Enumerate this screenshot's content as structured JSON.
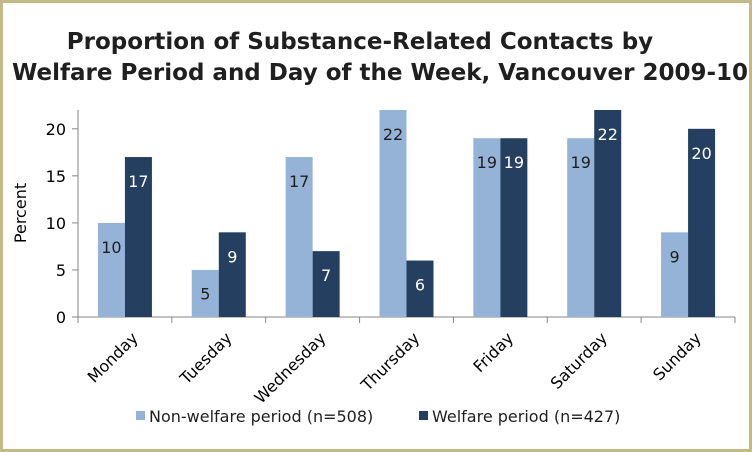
{
  "chart_data": {
    "type": "bar",
    "title_lines": [
      "Proportion of Substance-Related Contacts by",
      "Welfare Period and Day of the Week, Vancouver 2009-10"
    ],
    "xlabel": "",
    "ylabel": "Percent",
    "ylim": [
      0,
      22
    ],
    "yticks": [
      0,
      5,
      10,
      15,
      20
    ],
    "grid": false,
    "legend_position": "bottom",
    "categories": [
      "Monday",
      "Tuesday",
      "Wednesday",
      "Thursday",
      "Friday",
      "Saturday",
      "Sunday"
    ],
    "series": [
      {
        "name": "Non-welfare period (n=508)",
        "color": "#95b3d7",
        "label_color": "#1f1f1f",
        "values": [
          10,
          5,
          17,
          22,
          19,
          19,
          9
        ]
      },
      {
        "name": "Welfare period (n=427)",
        "color": "#243f60",
        "label_color": "#ffffff",
        "values": [
          17,
          9,
          7,
          6,
          19,
          22,
          20
        ]
      }
    ]
  }
}
